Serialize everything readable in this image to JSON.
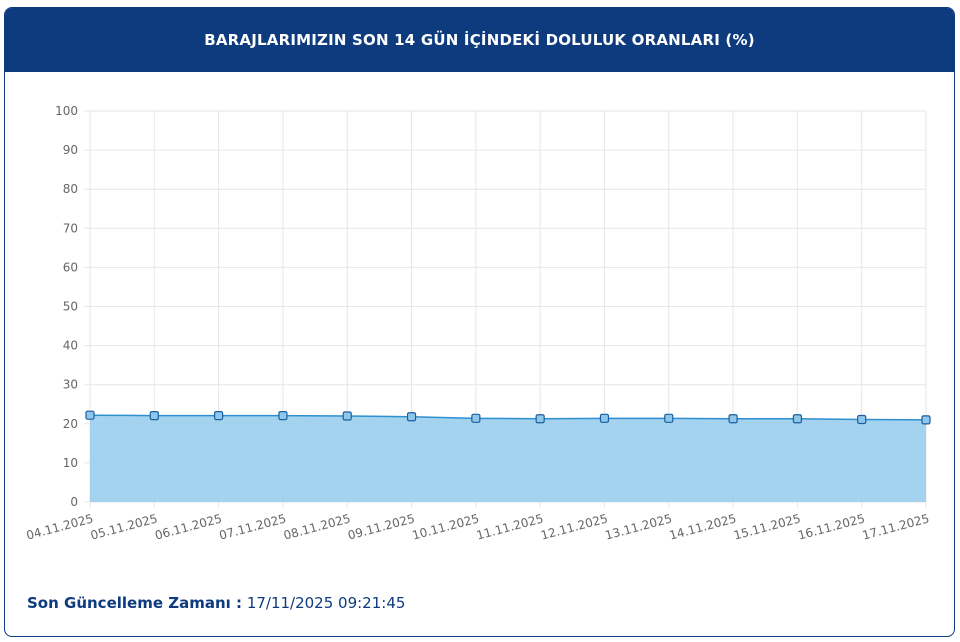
{
  "header": {
    "title": "BARAJLARIMIZIN SON 14 GÜN İÇİNDEKİ DOLULUK ORANLARI (%)"
  },
  "colors": {
    "header_bg": "#0e3a7e",
    "line": "#2f8fcf",
    "fill": "#9fd1ee",
    "marker": "#8fc7ec",
    "marker_stroke": "#1d5f9e"
  },
  "chart_data": {
    "type": "area",
    "title": "BARAJLARIMIZIN SON 14 GÜN İÇİNDEKİ DOLULUK ORANLARI (%)",
    "xlabel": "",
    "ylabel": "",
    "categories": [
      "04.11.2025",
      "05.11.2025",
      "06.11.2025",
      "07.11.2025",
      "08.11.2025",
      "09.11.2025",
      "10.11.2025",
      "11.11.2025",
      "12.11.2025",
      "13.11.2025",
      "14.11.2025",
      "15.11.2025",
      "16.11.2025",
      "17.11.2025"
    ],
    "values": [
      22.2,
      22.1,
      22.1,
      22.1,
      22.0,
      21.8,
      21.4,
      21.3,
      21.4,
      21.4,
      21.3,
      21.3,
      21.1,
      21.0
    ],
    "ylim": [
      0,
      100
    ],
    "yticks": [
      "0",
      "10",
      "20",
      "30",
      "40",
      "50",
      "60",
      "70",
      "80",
      "90",
      "100"
    ],
    "grid": true,
    "legend": "none"
  },
  "footer": {
    "label": "Son Güncelleme Zamanı :",
    "value": "17/11/2025 09:21:45"
  }
}
